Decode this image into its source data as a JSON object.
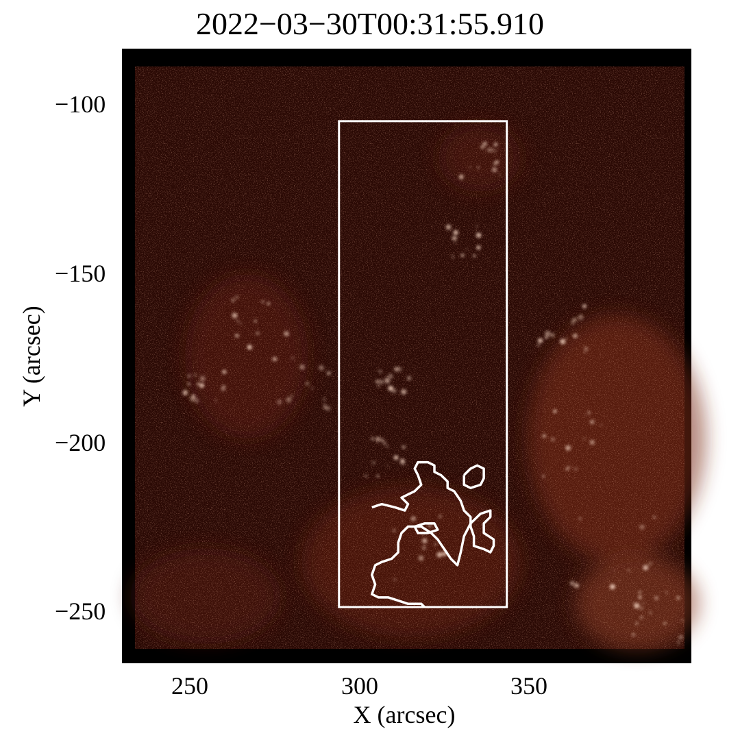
{
  "title": "2022−03−30T00:31:55.910",
  "xlabel": "X (arcsec)",
  "ylabel": "Y (arcsec)",
  "colors": {
    "map_dark": "#2a0904",
    "map_mid": "#6a2010",
    "map_bright": "#d4886a",
    "frame": "#000000",
    "box": "#ffffff"
  },
  "chart_data": {
    "type": "heatmap",
    "title": "2022−03−30T00:31:55.910",
    "xlabel": "X (arcsec)",
    "ylabel": "Y (arcsec)",
    "xlim": [
      231,
      398
    ],
    "ylim": [
      -264,
      -83
    ],
    "x_ticks": [
      "250",
      "300",
      "350"
    ],
    "y_ticks": [
      "−100",
      "−150",
      "−200",
      "−250"
    ],
    "grid": false,
    "rectangle": {
      "x": [
        293,
        344
      ],
      "y": [
        -251,
        -100
      ]
    },
    "contours": [
      {
        "points": [
          [
            303,
            -220
          ],
          [
            306,
            -219
          ],
          [
            310,
            -220
          ],
          [
            313,
            -221
          ],
          [
            314,
            -219
          ],
          [
            312,
            -217
          ],
          [
            314,
            -216
          ],
          [
            316,
            -215
          ],
          [
            318,
            -213
          ],
          [
            317,
            -210
          ],
          [
            316,
            -208
          ],
          [
            317,
            -206
          ],
          [
            320,
            -206
          ],
          [
            322,
            -207
          ],
          [
            322,
            -209
          ],
          [
            324,
            -210
          ],
          [
            326,
            -212
          ],
          [
            326,
            -214
          ],
          [
            328,
            -215
          ],
          [
            330,
            -218
          ],
          [
            331,
            -221
          ],
          [
            333,
            -223
          ],
          [
            333,
            -226
          ],
          [
            334,
            -229
          ],
          [
            334,
            -232
          ],
          [
            337,
            -233
          ],
          [
            339,
            -234
          ],
          [
            340,
            -232
          ],
          [
            340,
            -230
          ],
          [
            337,
            -228
          ],
          [
            337,
            -225
          ],
          [
            339,
            -223
          ],
          [
            339,
            -221
          ],
          [
            336,
            -222
          ],
          [
            333,
            -225
          ],
          [
            331,
            -229
          ],
          [
            330,
            -234
          ],
          [
            329,
            -238
          ],
          [
            327,
            -236
          ],
          [
            325,
            -233
          ],
          [
            323,
            -230
          ],
          [
            321,
            -228
          ],
          [
            318,
            -226
          ],
          [
            314,
            -226
          ],
          [
            312,
            -228
          ],
          [
            311,
            -231
          ],
          [
            311,
            -234
          ],
          [
            309,
            -236
          ],
          [
            306,
            -237
          ],
          [
            304,
            -238
          ],
          [
            303,
            -241
          ],
          [
            304,
            -244
          ],
          [
            303,
            -247
          ],
          [
            305,
            -248
          ],
          [
            308,
            -248
          ],
          [
            311,
            -249
          ],
          [
            314,
            -250
          ],
          [
            318,
            -250
          ],
          [
            319,
            -251
          ]
        ]
      },
      {
        "points": [
          [
            331,
            -210
          ],
          [
            333,
            -208
          ],
          [
            335,
            -207
          ],
          [
            337,
            -208
          ],
          [
            337,
            -211
          ],
          [
            336,
            -213
          ],
          [
            333,
            -214
          ],
          [
            331,
            -213
          ],
          [
            331,
            -210
          ]
        ]
      },
      {
        "points": [
          [
            316,
            -226
          ],
          [
            319,
            -225
          ],
          [
            322,
            -225
          ],
          [
            323,
            -227
          ],
          [
            320,
            -228
          ],
          [
            317,
            -228
          ],
          [
            316,
            -226
          ]
        ]
      }
    ]
  }
}
